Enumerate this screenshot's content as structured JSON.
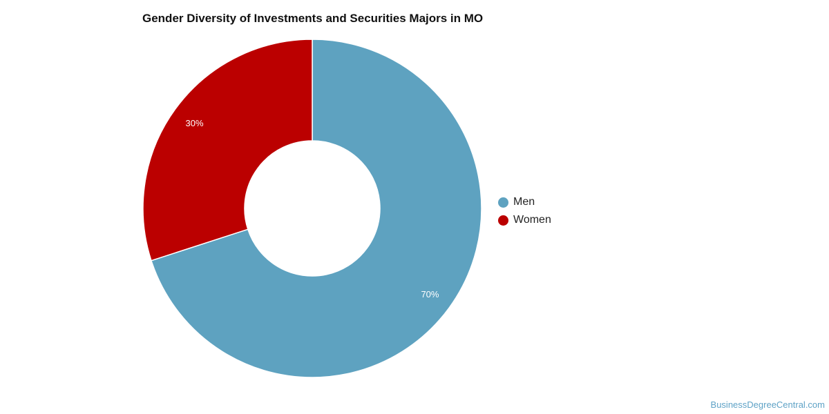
{
  "chart_data": {
    "type": "pie",
    "title": "Gender Diversity of Investments and Securities Majors in MO",
    "donut": true,
    "categories": [
      "Men",
      "Women"
    ],
    "values": [
      70,
      30
    ],
    "value_labels": [
      "70%",
      "30%"
    ],
    "colors": [
      "#5ea2c0",
      "#bb0000"
    ],
    "legend": {
      "position": "right",
      "entries": [
        "Men",
        "Women"
      ]
    }
  },
  "footer": {
    "source": "BusinessDegreeCentral.com"
  }
}
